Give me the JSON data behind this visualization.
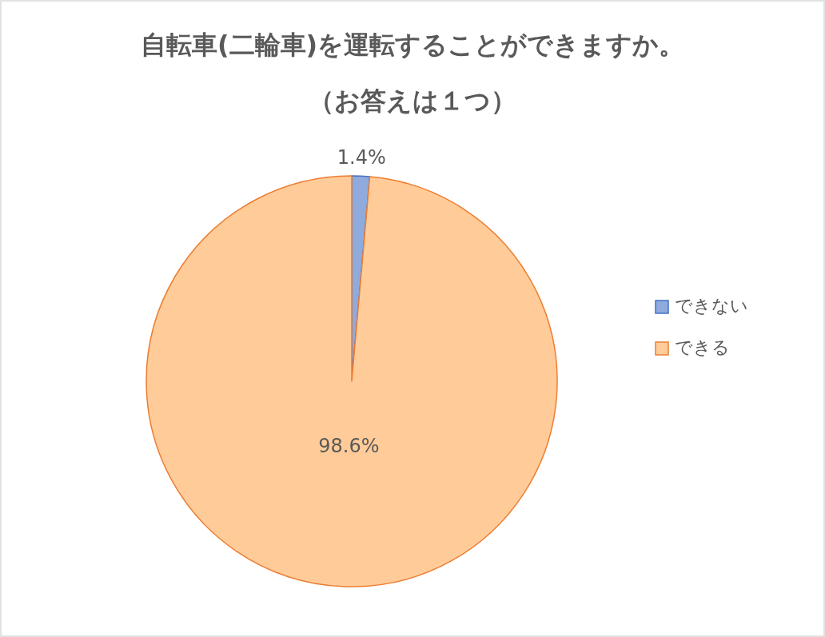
{
  "chart_data": {
    "type": "pie",
    "title": "自転車(二輪車)を運転することができますか。",
    "subtitle": "（お答えは１つ）",
    "categories": [
      "できない",
      "できる"
    ],
    "values": [
      1.4,
      98.6
    ],
    "colors": [
      "#8faadc",
      "#ffcc99"
    ],
    "value_labels": [
      "1.4%",
      "98.6%"
    ],
    "legend": "right"
  }
}
